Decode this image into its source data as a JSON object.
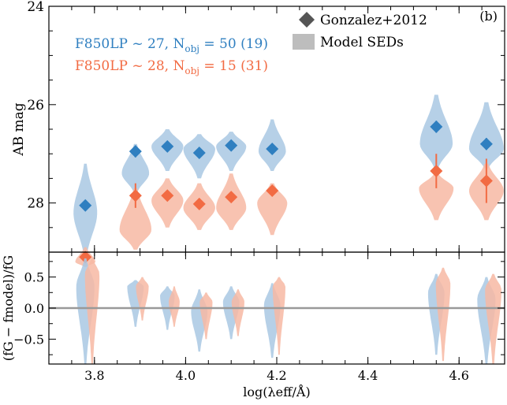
{
  "colors": {
    "blue": "#2f7fc0",
    "blue_light": "#a9c8e3",
    "orange": "#f26b43",
    "orange_light": "#f7b9a3",
    "zero_line": "#999999",
    "legend_marker": "#555555",
    "legend_patch": "#bdbdbd"
  },
  "chart_data": [
    {
      "panel": "top",
      "type": "scatter",
      "panel_label": "(b)",
      "title": "",
      "xlabel": "log(λeff/Å)",
      "ylabel": "AB mag",
      "xlim": [
        3.7,
        4.7
      ],
      "ylim": [
        29.0,
        24.0
      ],
      "y_inverted": true,
      "yticks": [
        24,
        26,
        28
      ],
      "legend": {
        "placement": "top-right",
        "items": [
          {
            "label": "Gonzalez+2012",
            "marker": "diamond"
          },
          {
            "label": "Model SEDs",
            "marker": "patch"
          }
        ]
      },
      "series": [
        {
          "name": "F850LP ~ 27",
          "label_main": "F850LP ~ 27, N",
          "label_sub": "obj",
          "label_tail": " = 50 (19)",
          "color": "blue",
          "x": [
            3.78,
            3.89,
            3.96,
            4.03,
            4.1,
            4.19,
            4.55,
            4.66
          ],
          "y": [
            28.05,
            26.95,
            26.85,
            26.98,
            26.83,
            26.9,
            26.45,
            26.8
          ],
          "yerr": [
            0.05,
            0.12,
            0.05,
            0.1,
            0.05,
            0.05,
            0.12,
            0.12
          ],
          "model_violins": [
            {
              "x": 3.78,
              "top": 27.2,
              "bottom": 29.1,
              "widest": 28.2,
              "max_width": 0.026
            },
            {
              "x": 3.89,
              "top": 26.8,
              "bottom": 27.8,
              "widest": 27.4,
              "max_width": 0.03
            },
            {
              "x": 3.96,
              "top": 26.5,
              "bottom": 27.35,
              "widest": 26.85,
              "max_width": 0.035
            },
            {
              "x": 4.03,
              "top": 26.6,
              "bottom": 27.5,
              "widest": 26.9,
              "max_width": 0.035
            },
            {
              "x": 4.1,
              "top": 26.55,
              "bottom": 27.35,
              "widest": 26.85,
              "max_width": 0.033
            },
            {
              "x": 4.19,
              "top": 26.3,
              "bottom": 27.35,
              "widest": 26.95,
              "max_width": 0.03
            },
            {
              "x": 4.55,
              "top": 25.8,
              "bottom": 27.3,
              "widest": 26.8,
              "max_width": 0.036
            },
            {
              "x": 4.66,
              "top": 25.95,
              "bottom": 27.3,
              "widest": 26.9,
              "max_width": 0.038
            }
          ]
        },
        {
          "name": "F850LP ~ 28",
          "label_main": "F850LP ~ 28, N",
          "label_sub": "obj",
          "label_tail": " = 15 (31)",
          "color": "orange",
          "x": [
            3.78,
            3.89,
            3.96,
            4.03,
            4.1,
            4.19,
            4.55,
            4.66
          ],
          "y": [
            29.1,
            27.85,
            27.85,
            28.02,
            27.88,
            27.75,
            27.35,
            27.55
          ],
          "yerr": [
            0.1,
            0.25,
            0.1,
            0.1,
            0.08,
            0.1,
            0.35,
            0.45
          ],
          "model_violins": [
            {
              "x": 3.78,
              "top": 28.9,
              "bottom": 29.3,
              "widest": 29.2,
              "max_width": 0.022
            },
            {
              "x": 3.89,
              "top": 27.7,
              "bottom": 28.95,
              "widest": 28.55,
              "max_width": 0.035
            },
            {
              "x": 3.96,
              "top": 27.5,
              "bottom": 28.5,
              "widest": 27.95,
              "max_width": 0.035
            },
            {
              "x": 4.03,
              "top": 27.6,
              "bottom": 28.55,
              "widest": 28.1,
              "max_width": 0.035
            },
            {
              "x": 4.1,
              "top": 27.4,
              "bottom": 28.55,
              "widest": 28.1,
              "max_width": 0.033
            },
            {
              "x": 4.19,
              "top": 27.6,
              "bottom": 28.65,
              "widest": 28.0,
              "max_width": 0.033
            },
            {
              "x": 4.55,
              "top": 27.4,
              "bottom": 28.35,
              "widest": 27.7,
              "max_width": 0.038
            },
            {
              "x": 4.66,
              "top": 27.2,
              "bottom": 28.35,
              "widest": 27.75,
              "max_width": 0.038
            }
          ]
        }
      ]
    },
    {
      "panel": "bottom",
      "type": "violin",
      "ylabel": "(fG − fmodel)/fG",
      "xlabel": "log(λeff/Å)",
      "xlim": [
        3.7,
        4.7
      ],
      "ylim": [
        -0.9,
        0.9
      ],
      "yticks": [
        -0.5,
        0.0,
        0.5
      ],
      "ytick_labels": [
        "−0.5",
        "0.0",
        "0.5"
      ],
      "xticks": [
        3.8,
        4.0,
        4.2,
        4.4,
        4.6
      ],
      "xtick_labels": [
        "3.8",
        "4.0",
        "4.2",
        "4.4",
        "4.6"
      ],
      "reference_line_y": 0.0,
      "series": [
        {
          "name": "F850LP ~ 27",
          "color": "blue",
          "violins": [
            {
              "x": 3.78,
              "top": 0.8,
              "bottom": -0.9,
              "widest": 0.35,
              "max_width": 0.02
            },
            {
              "x": 3.89,
              "top": 0.45,
              "bottom": -0.3,
              "widest": 0.35,
              "max_width": 0.018
            },
            {
              "x": 3.96,
              "top": 0.35,
              "bottom": -0.35,
              "widest": 0.2,
              "max_width": 0.016
            },
            {
              "x": 4.03,
              "top": 0.3,
              "bottom": -0.7,
              "widest": -0.05,
              "max_width": 0.018
            },
            {
              "x": 4.1,
              "top": 0.35,
              "bottom": -0.5,
              "widest": 0.1,
              "max_width": 0.018
            },
            {
              "x": 4.19,
              "top": 0.4,
              "bottom": -0.8,
              "widest": 0.05,
              "max_width": 0.018
            },
            {
              "x": 4.55,
              "top": 0.55,
              "bottom": -0.75,
              "widest": 0.25,
              "max_width": 0.018
            },
            {
              "x": 4.66,
              "top": 0.5,
              "bottom": -0.9,
              "widest": 0.15,
              "max_width": 0.02
            }
          ]
        },
        {
          "name": "F850LP ~ 28",
          "color": "orange",
          "violins": [
            {
              "x": 3.795,
              "top": 0.8,
              "bottom": -0.9,
              "widest": 0.55,
              "max_width": 0.016
            },
            {
              "x": 3.905,
              "top": 0.5,
              "bottom": -0.2,
              "widest": 0.35,
              "max_width": 0.014
            },
            {
              "x": 3.975,
              "top": 0.35,
              "bottom": -0.3,
              "widest": 0.1,
              "max_width": 0.012
            },
            {
              "x": 4.045,
              "top": 0.25,
              "bottom": -0.5,
              "widest": 0.1,
              "max_width": 0.014
            },
            {
              "x": 4.115,
              "top": 0.3,
              "bottom": -0.45,
              "widest": 0.1,
              "max_width": 0.014
            },
            {
              "x": 4.205,
              "top": 0.5,
              "bottom": -0.75,
              "widest": 0.35,
              "max_width": 0.014
            },
            {
              "x": 4.565,
              "top": 0.65,
              "bottom": -0.85,
              "widest": 0.4,
              "max_width": 0.016
            },
            {
              "x": 4.675,
              "top": 0.55,
              "bottom": -0.9,
              "widest": 0.3,
              "max_width": 0.018
            }
          ]
        }
      ]
    }
  ]
}
